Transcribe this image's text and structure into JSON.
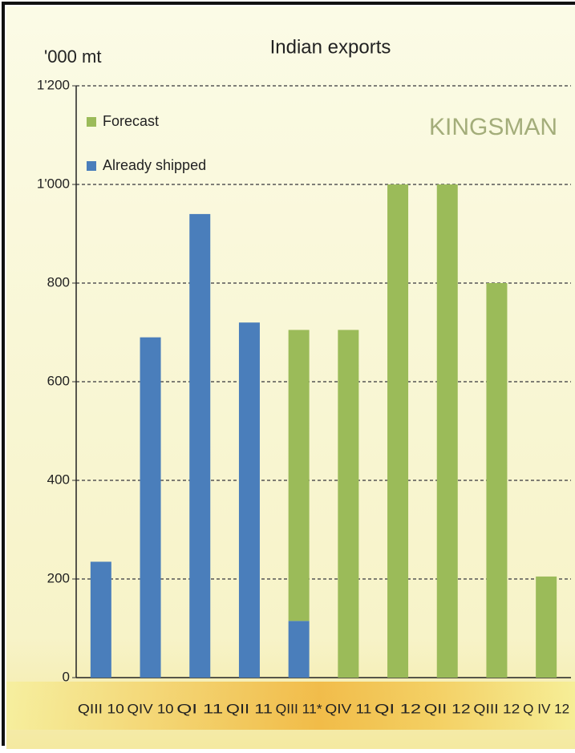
{
  "chart_data": {
    "type": "stacked_bar",
    "title": "Indian exports",
    "y_label": "'000 mt",
    "watermark": "KINGSMAN",
    "categories": [
      "QIII 10",
      "QIV 10",
      "QI 11",
      "QII 11",
      "QIII 11*",
      "QIV 11",
      "QI 12",
      "QII 12",
      "QIII 12",
      "Q IV 12"
    ],
    "series": [
      {
        "name": "Already shipped",
        "color": "#4a7ebb",
        "values": [
          235,
          690,
          940,
          720,
          115,
          null,
          null,
          null,
          null,
          null
        ]
      },
      {
        "name": "Forecast",
        "color": "#9bbb59",
        "values": [
          null,
          null,
          null,
          null,
          590,
          705,
          1000,
          1000,
          800,
          205
        ]
      }
    ],
    "ylim": [
      0,
      1200
    ],
    "yticks": [
      0,
      200,
      400,
      600,
      800,
      {
        "value": 1000,
        "label": "1'000"
      },
      {
        "value": 1200,
        "label": "1'200"
      }
    ],
    "grid": true,
    "legend": "top-left"
  }
}
